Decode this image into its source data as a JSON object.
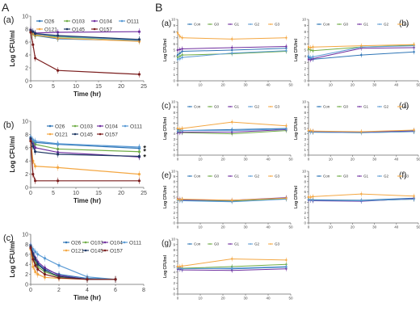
{
  "figure": {
    "section_labels": [
      "A",
      "B"
    ]
  },
  "legend_A": [
    {
      "name": "O26",
      "color": "#2e75b6"
    },
    {
      "name": "O103",
      "color": "#70ad47"
    },
    {
      "name": "O104",
      "color": "#7030a0"
    },
    {
      "name": "O111",
      "color": "#5b9bd5"
    },
    {
      "name": "O121",
      "color": "#f4a742"
    },
    {
      "name": "O145",
      "color": "#1f3864"
    },
    {
      "name": "O157",
      "color": "#7b1e1e"
    }
  ],
  "legend_B": [
    {
      "name": "Con",
      "color": "#2e75b6"
    },
    {
      "name": "G0",
      "color": "#70ad47"
    },
    {
      "name": "G1",
      "color": "#7030a0"
    },
    {
      "name": "G2",
      "color": "#5b9bd5"
    },
    {
      "name": "G3",
      "color": "#f4a742"
    }
  ],
  "chart_data": [
    {
      "id": "A-a",
      "panel_label": "(a)",
      "type": "line",
      "xlabel": "Time (hr)",
      "ylabel": "Log CFU/ml",
      "xlim": [
        0,
        25
      ],
      "ylim": [
        0,
        10
      ],
      "xticks": [
        0,
        5,
        10,
        15,
        20,
        25
      ],
      "yticks": [
        0,
        2,
        4,
        6,
        8,
        10
      ],
      "x": [
        0,
        0.5,
        1,
        6,
        24
      ],
      "series": [
        {
          "name": "O26",
          "values": [
            7.8,
            7.5,
            7.0,
            6.5,
            6.2
          ]
        },
        {
          "name": "O103",
          "values": [
            7.5,
            7.2,
            7.0,
            6.8,
            6.3
          ]
        },
        {
          "name": "O104",
          "values": [
            7.9,
            7.6,
            7.4,
            7.5,
            7.6
          ]
        },
        {
          "name": "O111",
          "values": [
            7.6,
            7.4,
            7.2,
            6.9,
            6.3
          ]
        },
        {
          "name": "O121",
          "values": [
            7.7,
            7.3,
            7.1,
            6.6,
            6.1
          ]
        },
        {
          "name": "O145",
          "values": [
            7.8,
            7.6,
            7.3,
            7.0,
            6.4
          ]
        },
        {
          "name": "O157",
          "values": [
            7.5,
            5.6,
            3.5,
            1.6,
            1.0
          ]
        }
      ]
    },
    {
      "id": "A-b",
      "panel_label": "(b)",
      "type": "line",
      "xlabel": "Time (hr)",
      "ylabel": "Log CFU/ml",
      "xlim": [
        0,
        25
      ],
      "ylim": [
        0,
        10
      ],
      "xticks": [
        0,
        5,
        10,
        15,
        20,
        25
      ],
      "yticks": [
        0,
        2,
        4,
        6,
        8,
        10
      ],
      "x": [
        0,
        0.5,
        1,
        6,
        24
      ],
      "annotations": [
        "*",
        "*",
        "*"
      ],
      "series": [
        {
          "name": "O26",
          "values": [
            7.5,
            7.0,
            6.8,
            6.5,
            5.9
          ]
        },
        {
          "name": "O103",
          "values": [
            7.2,
            6.8,
            6.5,
            5.8,
            5.4
          ]
        },
        {
          "name": "O104",
          "values": [
            7.3,
            6.6,
            6.0,
            5.3,
            4.6
          ]
        },
        {
          "name": "O111",
          "values": [
            7.6,
            7.2,
            7.0,
            6.6,
            6.1
          ]
        },
        {
          "name": "O121",
          "values": [
            7.0,
            4.0,
            3.2,
            3.0,
            2.0
          ]
        },
        {
          "name": "O145",
          "values": [
            7.4,
            6.2,
            5.4,
            5.0,
            4.7
          ]
        },
        {
          "name": "O157",
          "values": [
            7.0,
            2.0,
            1.0,
            1.0,
            1.0
          ]
        }
      ]
    },
    {
      "id": "A-c",
      "panel_label": "(c)",
      "type": "line",
      "xlabel": "Time (hr)",
      "ylabel": "Log CFU/ml",
      "xlim": [
        0,
        8
      ],
      "ylim": [
        0,
        10
      ],
      "xticks": [
        0,
        2,
        4,
        6,
        8
      ],
      "yticks": [
        0,
        2,
        4,
        6,
        8,
        10
      ],
      "x": [
        0,
        0.17,
        0.33,
        0.5,
        1,
        2,
        4,
        6
      ],
      "series": [
        {
          "name": "O26",
          "values": [
            7.5,
            6.0,
            5.0,
            4.2,
            3.0,
            2.0,
            1.2,
            1.0
          ]
        },
        {
          "name": "O103",
          "values": [
            7.2,
            5.5,
            4.2,
            3.5,
            2.5,
            1.5,
            1.0,
            1.0
          ]
        },
        {
          "name": "O104",
          "values": [
            7.8,
            6.2,
            5.3,
            4.5,
            3.3,
            1.8,
            1.0,
            1.0
          ]
        },
        {
          "name": "O111",
          "values": [
            7.8,
            7.0,
            6.5,
            6.0,
            5.2,
            3.8,
            1.5,
            1.0
          ]
        },
        {
          "name": "O121",
          "values": [
            7.0,
            3.5,
            2.5,
            2.0,
            1.4,
            1.2,
            1.0,
            1.0
          ]
        },
        {
          "name": "O145",
          "values": [
            7.6,
            6.0,
            5.0,
            4.0,
            2.8,
            1.6,
            1.0,
            1.0
          ]
        },
        {
          "name": "O157",
          "values": [
            7.3,
            5.0,
            3.8,
            3.0,
            2.0,
            1.3,
            1.0,
            1.0
          ]
        }
      ]
    },
    {
      "id": "B-a",
      "panel_label": "(a)",
      "type": "line",
      "xlabel": "",
      "ylabel": "Log CFU/ml",
      "xlim": [
        0,
        50
      ],
      "ylim": [
        0,
        10
      ],
      "xticks": [
        0,
        10,
        20,
        30,
        40,
        50
      ],
      "yticks": [
        0,
        1,
        2,
        3,
        4,
        5,
        6,
        7,
        8,
        9,
        10
      ],
      "x": [
        0,
        1,
        2,
        24,
        48
      ],
      "series": [
        {
          "name": "Con",
          "values": [
            4.2,
            4.5,
            4.8,
            5.0,
            5.3
          ]
        },
        {
          "name": "G0",
          "values": [
            3.8,
            4.0,
            4.2,
            4.4,
            4.8
          ]
        },
        {
          "name": "G1",
          "values": [
            5.0,
            5.1,
            5.2,
            5.4,
            5.6
          ]
        },
        {
          "name": "G2",
          "values": [
            3.5,
            3.6,
            3.8,
            4.5,
            4.9
          ]
        },
        {
          "name": "G3",
          "values": [
            7.8,
            7.2,
            7.0,
            6.8,
            7.0
          ]
        }
      ]
    },
    {
      "id": "B-b",
      "panel_label": "(b)",
      "type": "line",
      "xlabel": "",
      "ylabel": "Log CFU/ml",
      "xlim": [
        0,
        50
      ],
      "ylim": [
        0,
        10
      ],
      "xticks": [
        0,
        10,
        20,
        30,
        40,
        50
      ],
      "yticks": [
        0,
        1,
        2,
        3,
        4,
        5,
        6,
        7,
        8,
        9,
        10
      ],
      "x": [
        0,
        1,
        2,
        24,
        48
      ],
      "series": [
        {
          "name": "Con",
          "values": [
            3.8,
            3.6,
            3.5,
            4.2,
            4.7
          ]
        },
        {
          "name": "G0",
          "values": [
            5.2,
            5.0,
            4.9,
            5.5,
            5.8
          ]
        },
        {
          "name": "G1",
          "values": [
            3.5,
            3.4,
            3.6,
            5.3,
            5.4
          ]
        },
        {
          "name": "G2",
          "values": [
            4.0,
            3.8,
            3.9,
            5.5,
            5.7
          ]
        },
        {
          "name": "G3",
          "values": [
            5.5,
            5.4,
            5.5,
            5.7,
            5.9
          ]
        }
      ]
    },
    {
      "id": "B-c",
      "panel_label": "(c)",
      "type": "line",
      "xlabel": "",
      "ylabel": "Log CFU/ml",
      "xlim": [
        0,
        50
      ],
      "ylim": [
        0,
        10
      ],
      "xticks": [
        0,
        10,
        20,
        30,
        40,
        50
      ],
      "yticks": [
        0,
        1,
        2,
        3,
        4,
        5,
        6,
        7,
        8,
        9,
        10
      ],
      "x": [
        0,
        1,
        2,
        24,
        48
      ],
      "series": [
        {
          "name": "Con",
          "values": [
            4.8,
            4.7,
            4.6,
            4.8,
            5.0
          ]
        },
        {
          "name": "G0",
          "values": [
            4.4,
            4.3,
            4.2,
            4.0,
            4.6
          ]
        },
        {
          "name": "G1",
          "values": [
            4.2,
            4.2,
            4.3,
            4.3,
            4.8
          ]
        },
        {
          "name": "G2",
          "values": [
            4.5,
            4.6,
            4.6,
            4.6,
            4.9
          ]
        },
        {
          "name": "G3",
          "values": [
            5.0,
            4.9,
            5.0,
            6.2,
            5.5
          ]
        }
      ]
    },
    {
      "id": "B-d",
      "panel_label": "(d)",
      "type": "line",
      "xlabel": "",
      "ylabel": "Log CFU/ml",
      "xlim": [
        0,
        50
      ],
      "ylim": [
        0,
        10
      ],
      "xticks": [
        0,
        10,
        20,
        30,
        40,
        50
      ],
      "yticks": [
        0,
        1,
        2,
        3,
        4,
        5,
        6,
        7,
        8,
        9,
        10
      ],
      "x": [
        0,
        1,
        2,
        24,
        48
      ],
      "series": [
        {
          "name": "Con",
          "values": [
            4.5,
            4.5,
            4.4,
            4.3,
            4.6
          ]
        },
        {
          "name": "G0",
          "values": [
            4.4,
            4.4,
            4.3,
            4.2,
            4.4
          ]
        },
        {
          "name": "G1",
          "values": [
            4.5,
            4.4,
            4.4,
            4.3,
            4.5
          ]
        },
        {
          "name": "G2",
          "values": [
            4.4,
            4.3,
            4.3,
            4.2,
            4.4
          ]
        },
        {
          "name": "G3",
          "values": [
            4.6,
            4.6,
            4.5,
            4.4,
            4.7
          ]
        }
      ]
    },
    {
      "id": "B-e",
      "panel_label": "(e)",
      "type": "line",
      "xlabel": "",
      "ylabel": "Log CFU/ml",
      "xlim": [
        0,
        50
      ],
      "ylim": [
        0,
        10
      ],
      "xticks": [
        0,
        10,
        20,
        30,
        40,
        50
      ],
      "yticks": [
        0,
        1,
        2,
        3,
        4,
        5,
        6,
        7,
        8,
        9,
        10
      ],
      "x": [
        0,
        1,
        2,
        24,
        48
      ],
      "series": [
        {
          "name": "Con",
          "values": [
            4.5,
            4.4,
            4.4,
            4.2,
            4.8
          ]
        },
        {
          "name": "G0",
          "values": [
            4.6,
            4.5,
            4.5,
            4.3,
            4.7
          ]
        },
        {
          "name": "G1",
          "values": [
            4.7,
            4.6,
            4.5,
            4.4,
            4.9
          ]
        },
        {
          "name": "G2",
          "values": [
            4.4,
            4.3,
            4.3,
            4.1,
            4.6
          ]
        },
        {
          "name": "G3",
          "values": [
            4.6,
            4.5,
            4.6,
            4.4,
            4.8
          ]
        }
      ]
    },
    {
      "id": "B-f",
      "panel_label": "(f)",
      "type": "line",
      "xlabel": "",
      "ylabel": "Log CFU/ml",
      "xlim": [
        0,
        50
      ],
      "ylim": [
        0,
        10
      ],
      "xticks": [
        0,
        10,
        20,
        30,
        40,
        50
      ],
      "yticks": [
        0,
        1,
        2,
        3,
        4,
        5,
        6,
        7,
        8,
        9,
        10
      ],
      "x": [
        0,
        1,
        2,
        24,
        48
      ],
      "series": [
        {
          "name": "Con",
          "values": [
            4.6,
            4.5,
            4.5,
            4.4,
            4.8
          ]
        },
        {
          "name": "G0",
          "values": [
            4.5,
            4.4,
            4.4,
            4.3,
            4.6
          ]
        },
        {
          "name": "G1",
          "values": [
            4.4,
            4.4,
            4.3,
            4.2,
            4.7
          ]
        },
        {
          "name": "G2",
          "values": [
            4.5,
            4.5,
            4.4,
            4.3,
            4.6
          ]
        },
        {
          "name": "G3",
          "values": [
            5.0,
            5.0,
            5.1,
            5.6,
            5.2
          ]
        }
      ]
    },
    {
      "id": "B-g",
      "panel_label": "(g)",
      "type": "line",
      "xlabel": "",
      "ylabel": "Log CFU/ml",
      "xlim": [
        0,
        50
      ],
      "ylim": [
        0,
        10
      ],
      "xticks": [
        0,
        10,
        20,
        30,
        40,
        50
      ],
      "yticks": [
        0,
        1,
        2,
        3,
        4,
        5,
        6,
        7,
        8,
        9,
        10
      ],
      "x": [
        0,
        1,
        2,
        24,
        48
      ],
      "series": [
        {
          "name": "Con",
          "values": [
            4.8,
            4.8,
            4.7,
            4.6,
            4.9
          ]
        },
        {
          "name": "G0",
          "values": [
            4.6,
            4.6,
            4.7,
            5.0,
            5.4
          ]
        },
        {
          "name": "G1",
          "values": [
            4.5,
            4.5,
            4.4,
            4.3,
            4.6
          ]
        },
        {
          "name": "G2",
          "values": [
            4.7,
            4.7,
            4.6,
            4.7,
            5.0
          ]
        },
        {
          "name": "G3",
          "values": [
            5.0,
            5.0,
            5.1,
            6.4,
            6.2
          ]
        }
      ]
    }
  ]
}
